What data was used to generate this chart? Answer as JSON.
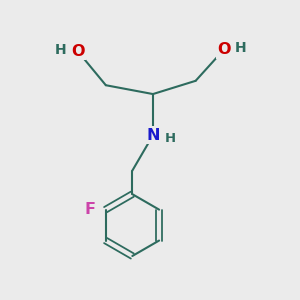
{
  "bg_color": "#ebebeb",
  "bond_color": "#2d6b5e",
  "bond_lw": 1.5,
  "O_color": "#cc0000",
  "N_color": "#1a1acc",
  "F_color": "#cc44aa",
  "H_color": "#2d6b5e",
  "font_size_atoms": 11.5,
  "font_size_H": 10,
  "figsize": [
    3.0,
    3.0
  ],
  "dpi": 100,
  "xlim": [
    0,
    10
  ],
  "ylim": [
    0,
    10
  ]
}
